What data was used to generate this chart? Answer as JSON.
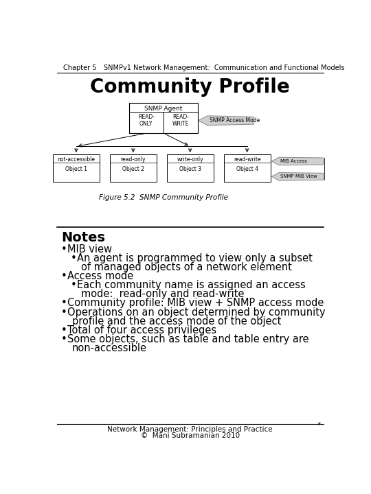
{
  "header_chapter": "Chapter 5",
  "header_title": "SNMPv1 Network Management:  Communication and Functional Models",
  "slide_title": "Community Profile",
  "figure_caption": "Figure 5.2  SNMP Community Profile",
  "notes_title": "Notes",
  "bullet_points": [
    {
      "level": 1,
      "text": "MIB view",
      "continuation": null
    },
    {
      "level": 2,
      "text": "An agent is programmed to view only a subset",
      "continuation": "of managed objects of a network element"
    },
    {
      "level": 1,
      "text": "Access mode",
      "continuation": null
    },
    {
      "level": 2,
      "text": "Each community name is assigned an access",
      "continuation": "mode:  read-only and read-write"
    },
    {
      "level": 1,
      "text": "Community profile: MIB view + SNMP access mode",
      "continuation": null
    },
    {
      "level": 1,
      "text": "Operations on an object determined by community",
      "continuation": "profile and the access mode of the object"
    },
    {
      "level": 1,
      "text": "Total of four access privileges",
      "continuation": null
    },
    {
      "level": 1,
      "text": "Some objects, such as table and table entry are",
      "continuation": "non-accessible"
    }
  ],
  "footer_line1": "Network Management: Principles and Practice",
  "footer_line2": "©  Mani Subramanian 2010",
  "bg_color": "#ffffff",
  "text_color": "#000000",
  "agent_box_label": "SNMP Agent",
  "access_mode_label": "SNMP Access Mode",
  "mib_access_label": "MIB Access",
  "mib_view_label": "SNMP MIB View",
  "object_boxes": [
    {
      "top": "not-accessible",
      "bottom": "Object 1"
    },
    {
      "top": "read-only",
      "bottom": "Object 2"
    },
    {
      "top": "write-only",
      "bottom": "Object 3"
    },
    {
      "top": "read-write",
      "bottom": "Object 4"
    }
  ]
}
